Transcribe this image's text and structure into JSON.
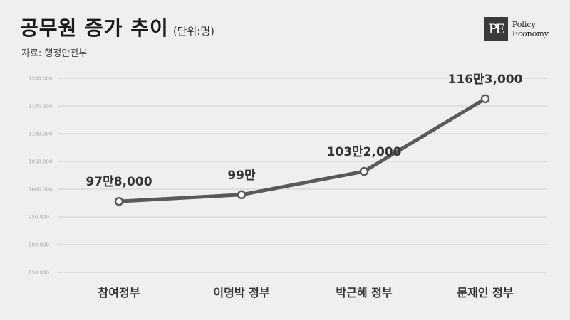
{
  "header": {
    "title": "공무원 증가 추이",
    "unit": "(단위:명)",
    "source": "자료: 행정안전부"
  },
  "logo": {
    "mark": "PE",
    "line1": "Policy",
    "line2": "Economy"
  },
  "colors": {
    "background": "#efefef",
    "line": "#5a5a5a",
    "grid": "#cfcfcf"
  },
  "chart_data": {
    "type": "line",
    "categories": [
      "참여정부",
      "이명박 정부",
      "박근혜 정부",
      "문재인 정부"
    ],
    "values": [
      978000,
      990000,
      1032000,
      1163000
    ],
    "data_labels": [
      "97만8,000",
      "99만",
      "103만2,000",
      "116만3,000"
    ],
    "y_ticks": [
      850000,
      900000,
      950000,
      1000000,
      1050000,
      1100000,
      1150000,
      1200000
    ],
    "y_tick_labels": [
      "850.000",
      "900.000",
      "950.000",
      "1000.000",
      "1050.000",
      "1100.000",
      "1150.000",
      "1200.000"
    ],
    "ylim": [
      850000,
      1200000
    ],
    "grid": true,
    "markers": "hollow-circle"
  }
}
